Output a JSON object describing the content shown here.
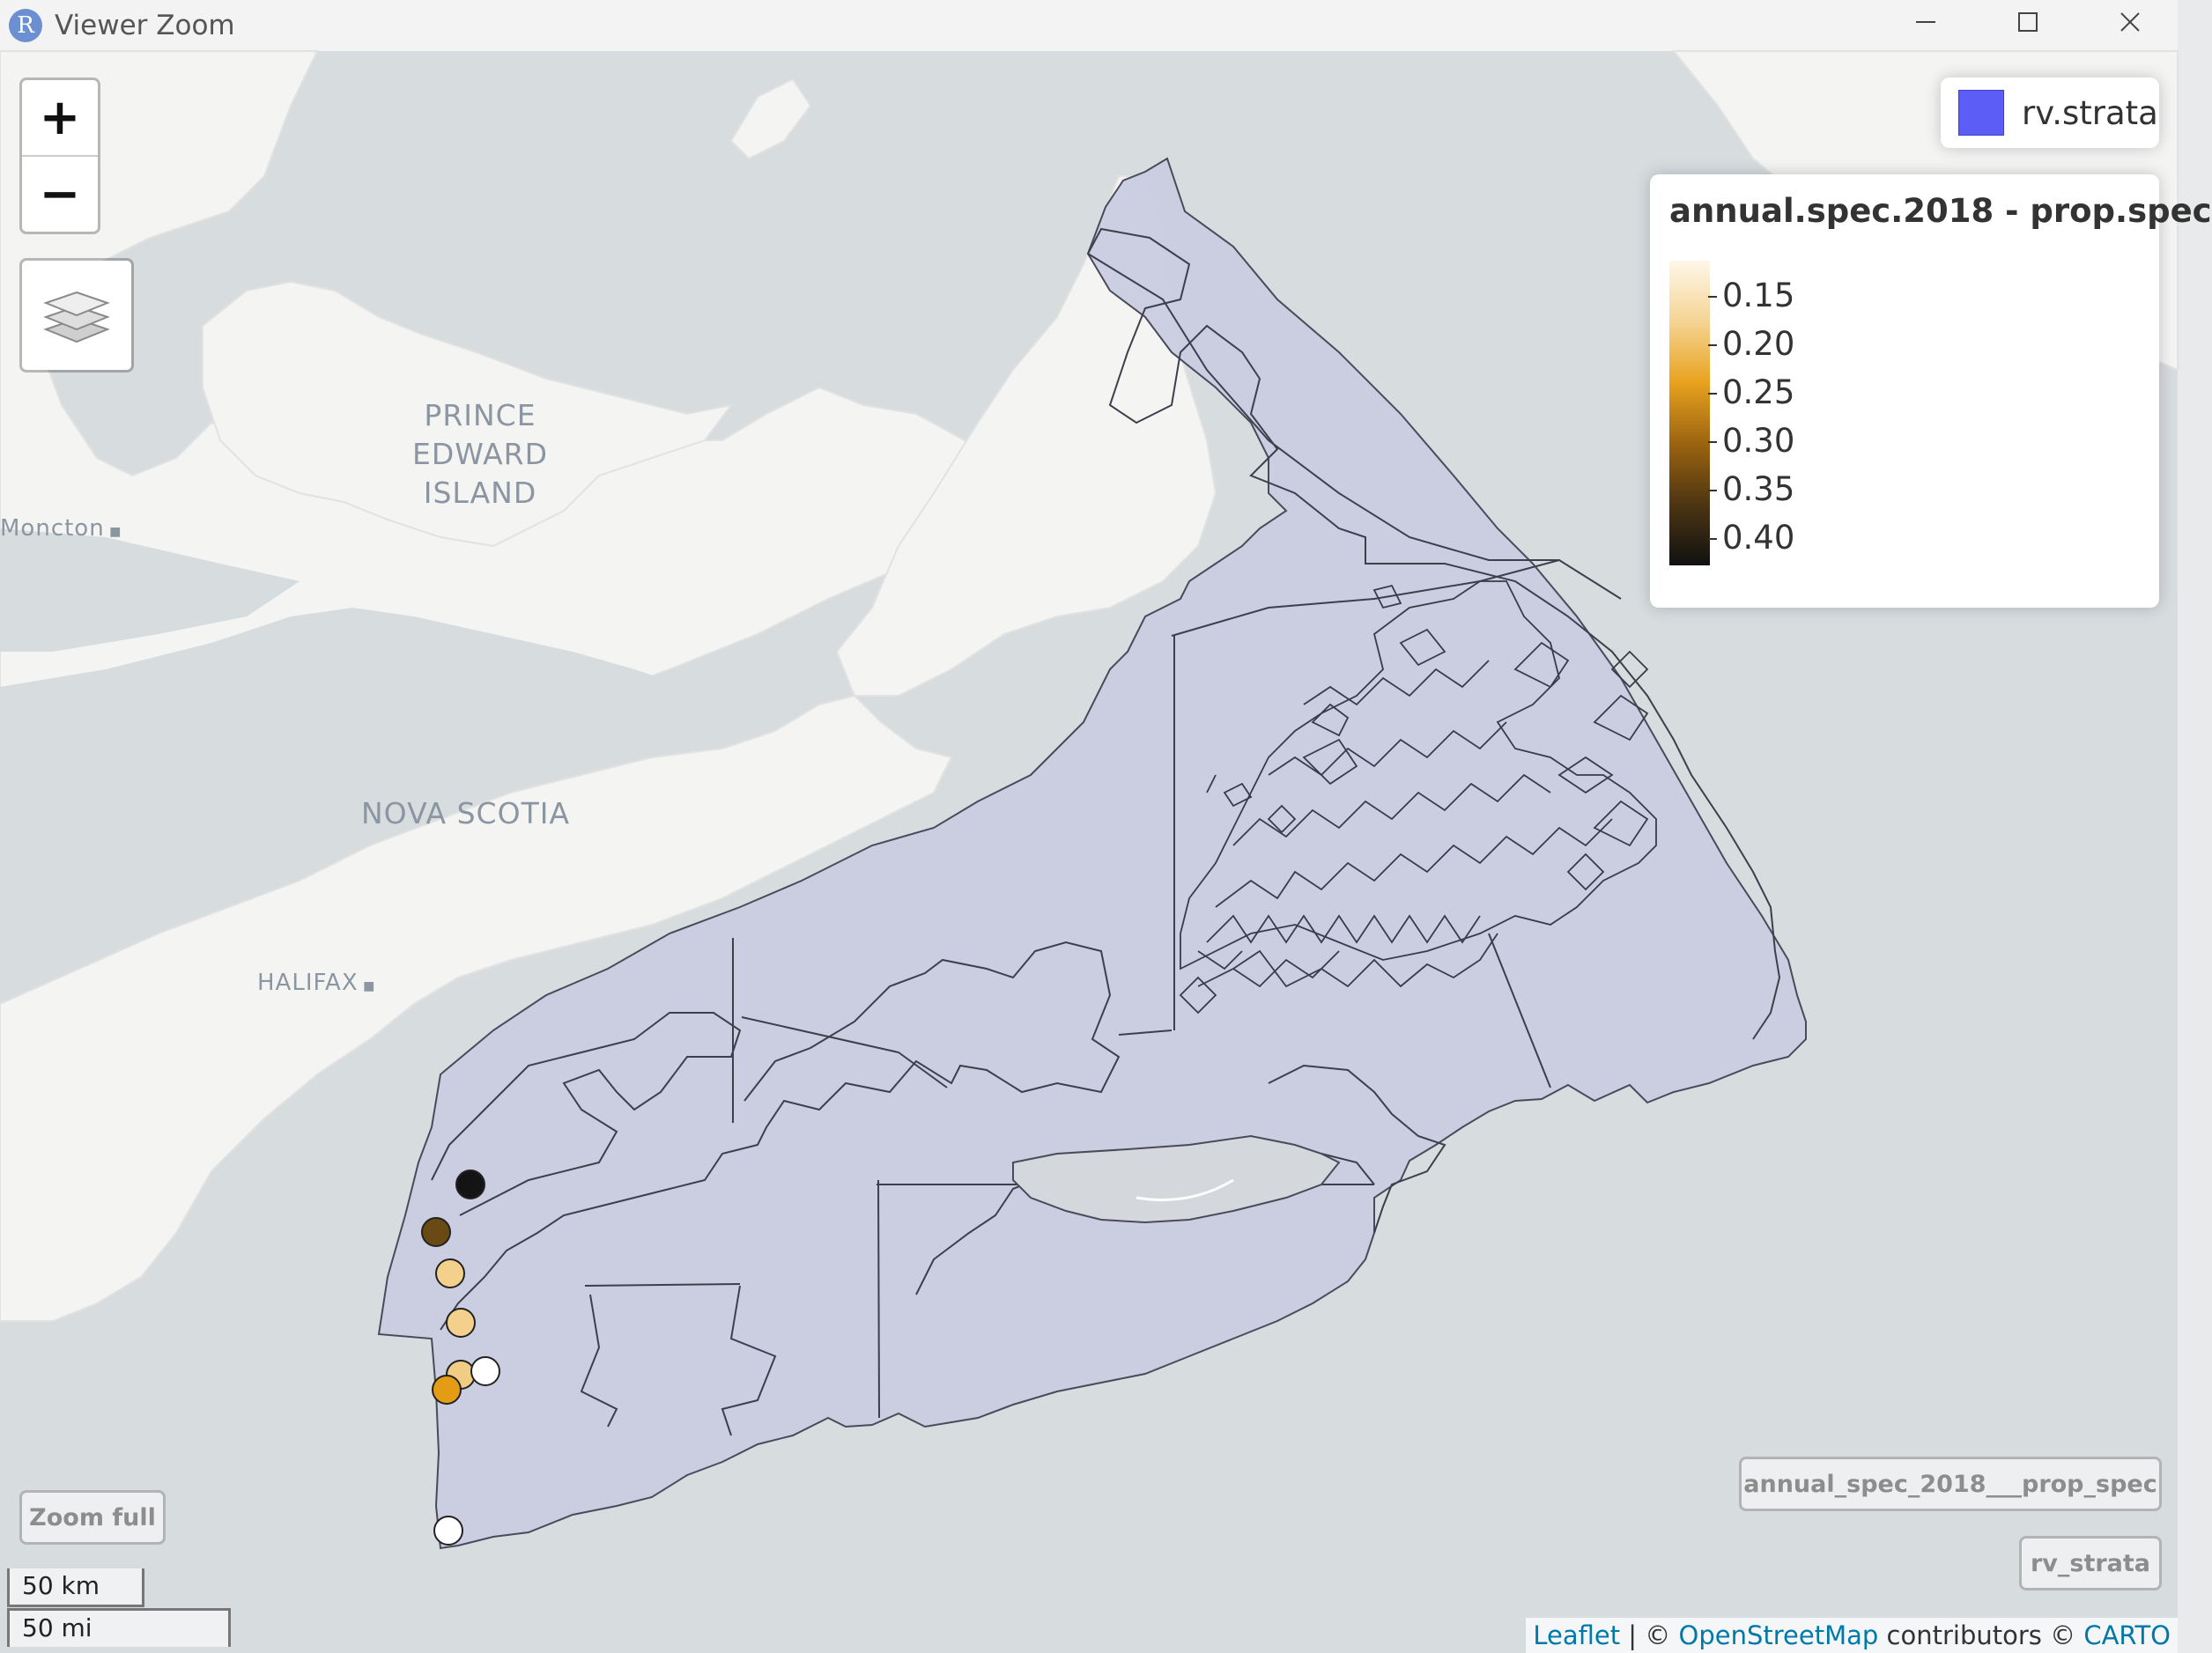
{
  "window": {
    "title": "Viewer Zoom",
    "app_icon_letter": "R",
    "controls": [
      "minimize",
      "maximize",
      "close"
    ]
  },
  "map": {
    "place_labels": {
      "pei_line1": "PRINCE",
      "pei_line2": "EDWARD",
      "pei_line3": "ISLAND",
      "moncton": "Moncton",
      "nova_scotia": "NOVA SCOTIA",
      "halifax": "HALIFAX"
    },
    "zoom_in_label": "+",
    "zoom_out_label": "−",
    "zoom_full_label": "Zoom full",
    "layer_button_1": "annual_spec_2018___prop_spec",
    "layer_button_2": "rv_strata",
    "layers_legend": {
      "label": "rv.strata",
      "color": "#5c5cf7"
    },
    "color_legend": {
      "title": "annual.spec.2018 - prop.spec",
      "ticks": [
        "0.15",
        "0.20",
        "0.25",
        "0.30",
        "0.35",
        "0.40"
      ],
      "gradient": [
        "#fff7ea",
        "#f5d494",
        "#e8a21e",
        "#9b6410",
        "#4d3512",
        "#111111"
      ]
    },
    "points": [
      {
        "value": 0.41,
        "color": "#141414"
      },
      {
        "value": 0.33,
        "color": "#6a4a14"
      },
      {
        "value": 0.19,
        "color": "#f4d08d"
      },
      {
        "value": 0.19,
        "color": "#f4d08d"
      },
      {
        "value": 0.19,
        "color": "#f1cc84"
      },
      {
        "value": 0.13,
        "color": "#ffffff"
      },
      {
        "value": 0.26,
        "color": "#e49c14"
      },
      {
        "value": 0.13,
        "color": "#ffffff"
      }
    ],
    "scale": {
      "km": "50 km",
      "mi": "50 mi"
    },
    "attribution": {
      "leaflet": "Leaflet",
      "sep1": " | © ",
      "osm": "OpenStreetMap",
      "mid": " contributors © ",
      "carto": "CARTO"
    }
  }
}
